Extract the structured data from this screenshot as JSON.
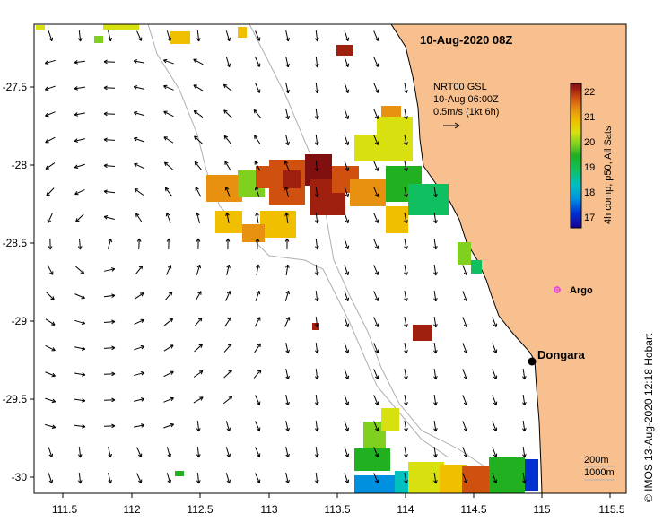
{
  "title": "10-Aug-2020 08Z",
  "current_info": {
    "source": "NRT00 GSL",
    "time": "10-Aug 06:00Z",
    "scale_label": "0.5m/s (1kt 6h)"
  },
  "colorbar": {
    "title": "4h comp, p50, All Sats",
    "ticks": [
      "22",
      "21",
      "20",
      "19",
      "18",
      "17"
    ],
    "colors": [
      "#1a0090",
      "#0030d0",
      "#0090e0",
      "#00c0c0",
      "#10c060",
      "#20b020",
      "#80d020",
      "#d8e010",
      "#f0c000",
      "#e89010",
      "#d05010",
      "#a02010",
      "#801010"
    ]
  },
  "axes": {
    "x_ticks": [
      "111.5",
      "112",
      "112.5",
      "113",
      "113.5",
      "114",
      "114.5",
      "115",
      "115.5"
    ],
    "y_ticks": [
      "-27.5",
      "-28",
      "-28.5",
      "-29",
      "-29.5",
      "-30"
    ]
  },
  "places": {
    "dongara": "Dongara",
    "argo": "Argo"
  },
  "isobaths": {
    "shallow": "200m",
    "deep": "1000m"
  },
  "colors": {
    "land": "#f9c08f",
    "coast": "#000000",
    "isobath": "#b0b0b0",
    "argo": "#e040e0"
  },
  "credit": "© IMOS 13-Aug-2020 12:18 Hobart"
}
